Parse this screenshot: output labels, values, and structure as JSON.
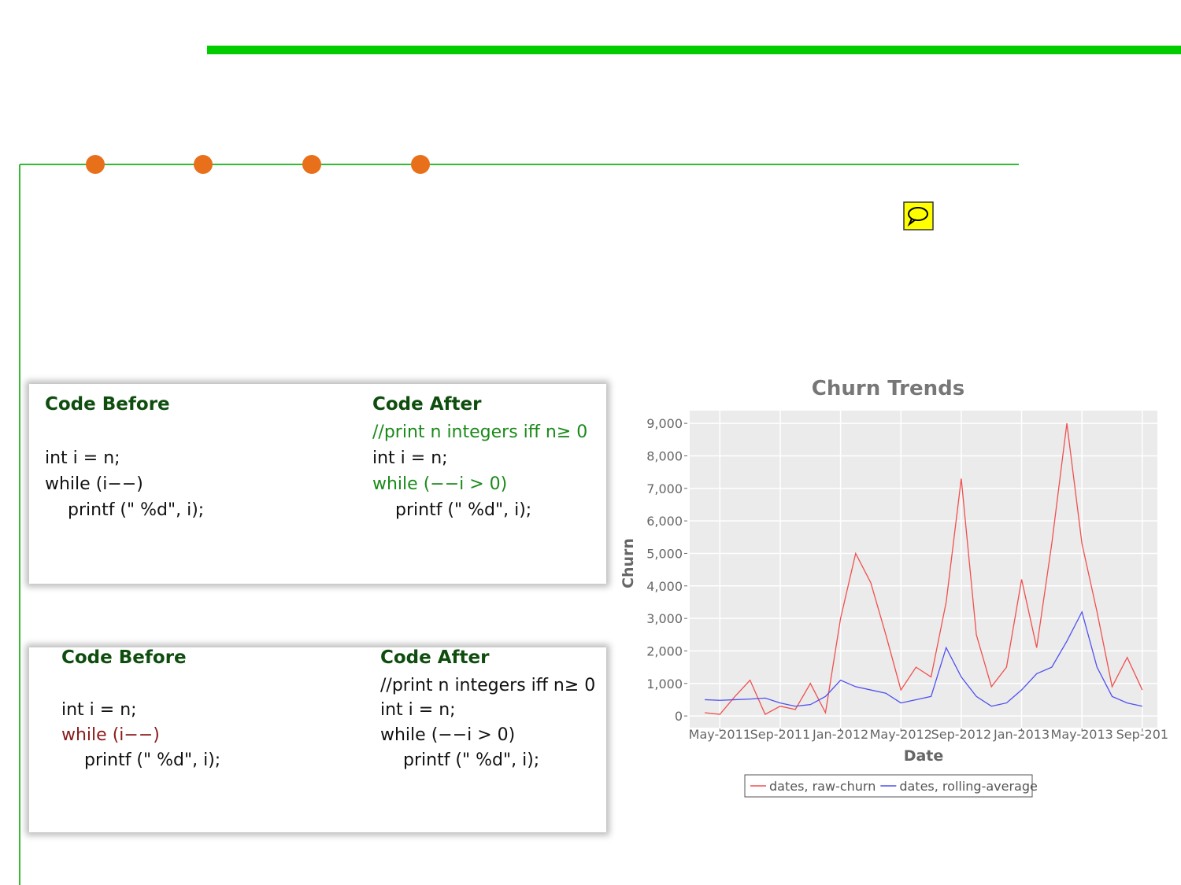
{
  "panels": [
    {
      "before": {
        "heading": "Code Before",
        "lines": [
          {
            "text": "int i = n;"
          },
          {
            "text": "while (i−−)"
          },
          {
            "text": "printf (\" %d\", i);"
          }
        ]
      },
      "after": {
        "heading": "Code After",
        "lines": [
          {
            "text": "//print n integers iff n≥ 0",
            "color": "#1a8a1a"
          },
          {
            "text": "int i = n;"
          },
          {
            "text": "while (−−i > 0)",
            "color": "#1a8a1a"
          },
          {
            "text": "printf (\" %d\", i);"
          }
        ]
      }
    },
    {
      "before": {
        "heading": "Code Before",
        "lines": [
          {
            "text": "int i = n;"
          },
          {
            "text": "while (i−−)",
            "color": "#8b1a1a"
          },
          {
            "text": "printf (\" %d\", i);"
          }
        ]
      },
      "after": {
        "heading": "Code After",
        "lines": [
          {
            "text": "//print n integers iff n≥ 0"
          },
          {
            "text": "int i = n;"
          },
          {
            "text": "while (−−i > 0)"
          },
          {
            "text": "printf (\" %d\", i);"
          }
        ]
      }
    }
  ],
  "chart_data": {
    "type": "line",
    "title": "Churn Trends",
    "x_label": "Date",
    "y_label": "Churn",
    "x": [
      "2011-04",
      "2011-05",
      "2011-06",
      "2011-07",
      "2011-08",
      "2011-09",
      "2011-10",
      "2011-11",
      "2011-12",
      "2012-01",
      "2012-02",
      "2012-03",
      "2012-04",
      "2012-05",
      "2012-06",
      "2012-07",
      "2012-08",
      "2012-09",
      "2012-10",
      "2012-11",
      "2012-12",
      "2013-01",
      "2013-02",
      "2013-03",
      "2013-04",
      "2013-05",
      "2013-06",
      "2013-07",
      "2013-08",
      "2013-09"
    ],
    "series": [
      {
        "name": "dates, raw-churn",
        "color": "#f05050",
        "values": [
          100,
          50,
          600,
          1100,
          50,
          300,
          200,
          1000,
          100,
          3000,
          5000,
          4100,
          2500,
          800,
          1500,
          1200,
          3500,
          7300,
          2500,
          900,
          1500,
          4200,
          2100,
          5300,
          9000,
          5300,
          3200,
          900,
          1800,
          800
        ]
      },
      {
        "name": "dates, rolling-average",
        "color": "#5050f0",
        "values": [
          500,
          480,
          500,
          520,
          550,
          400,
          300,
          350,
          600,
          1100,
          900,
          800,
          700,
          400,
          500,
          600,
          2100,
          1200,
          600,
          300,
          400,
          800,
          1300,
          1500,
          2300,
          3200,
          1500,
          600,
          400,
          300
        ]
      }
    ],
    "xlim": [
      "2011-03",
      "2013-10"
    ],
    "xticks": [
      {
        "value": "2011-05",
        "label": "May-2011"
      },
      {
        "value": "2011-09",
        "label": "Sep-2011"
      },
      {
        "value": "2012-01",
        "label": "Jan-2012"
      },
      {
        "value": "2012-05",
        "label": "May-2012"
      },
      {
        "value": "2012-09",
        "label": "Sep-2012"
      },
      {
        "value": "2013-01",
        "label": "Jan-2013"
      },
      {
        "value": "2013-05",
        "label": "May-2013"
      },
      {
        "value": "2013-09",
        "label": "Sep-201"
      }
    ],
    "ylim": [
      -360,
      9390
    ],
    "yticks": [
      0,
      {
        "value": 1000,
        "label": "1,000"
      },
      {
        "value": 2000,
        "label": "2,000"
      },
      {
        "value": 3000,
        "label": "3,000"
      },
      {
        "value": 4000,
        "label": "4,000"
      },
      {
        "value": 5000,
        "label": "5,000"
      },
      {
        "value": 6000,
        "label": "6,000"
      },
      {
        "value": 7000,
        "label": "7,000"
      },
      {
        "value": 8000,
        "label": "8,000"
      },
      {
        "value": 9000,
        "label": "9,000"
      }
    ],
    "grid": true
  }
}
